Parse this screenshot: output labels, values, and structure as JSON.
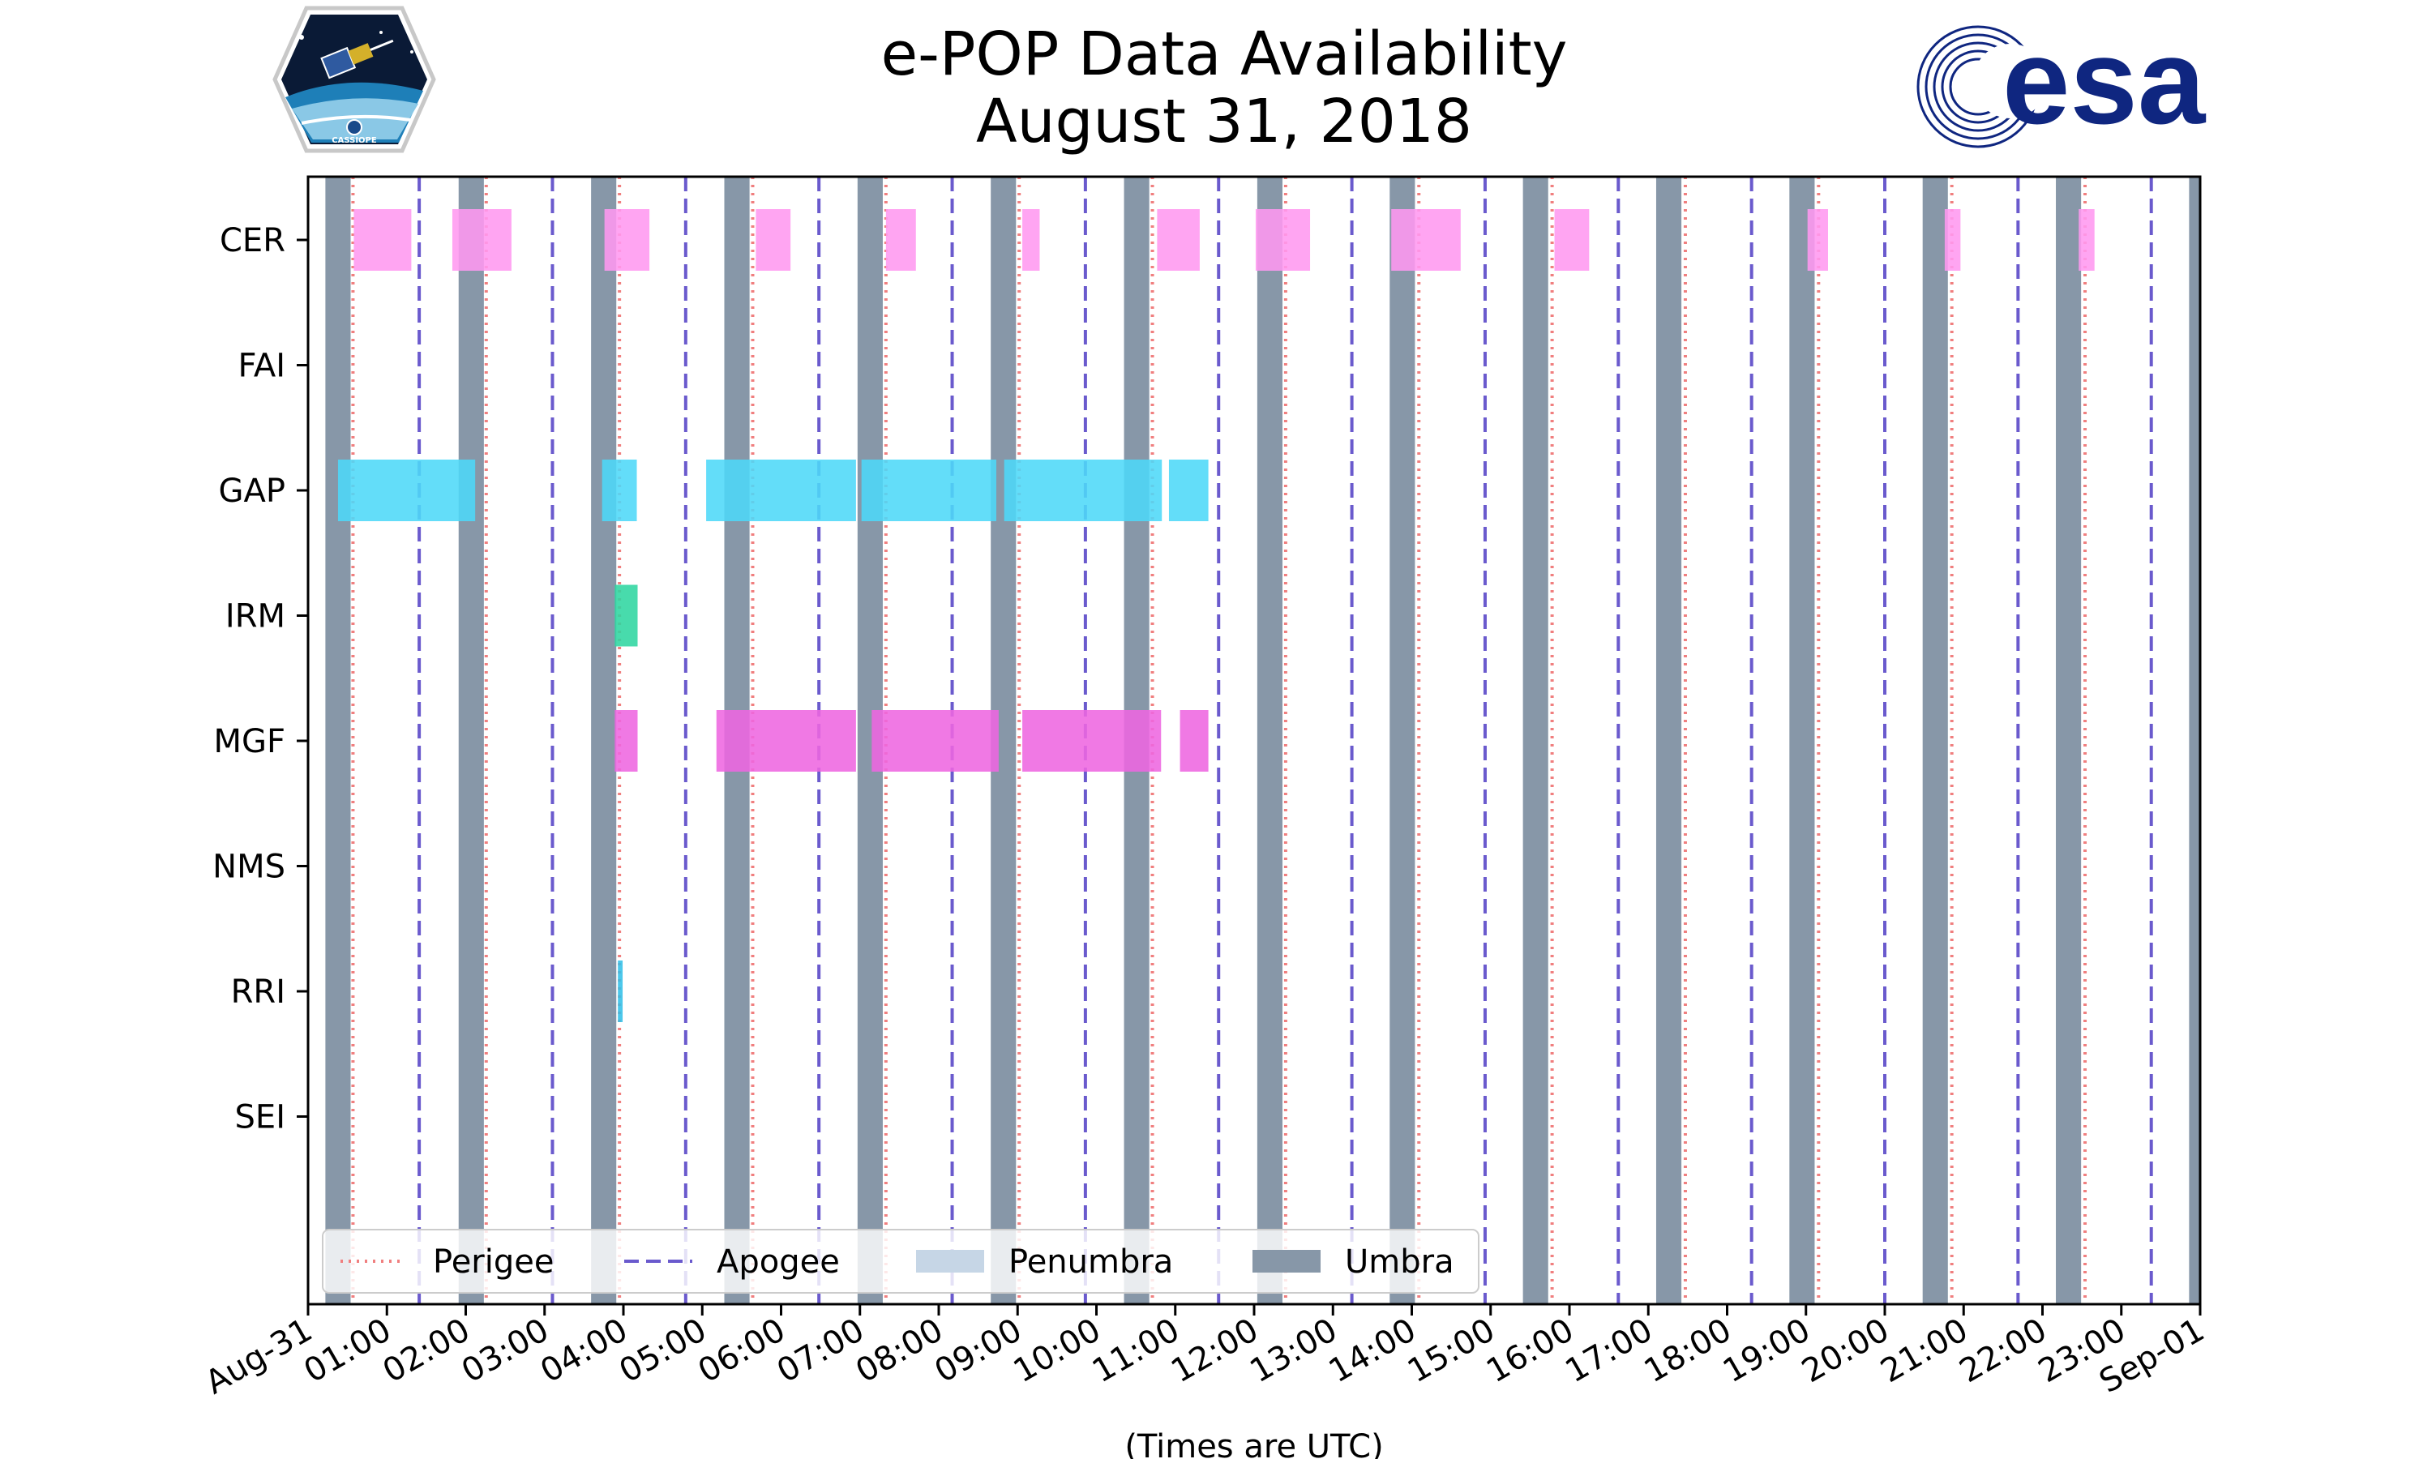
{
  "title_lines": [
    "e-POP Data Availability",
    "August 31, 2018"
  ],
  "logos": {
    "left": {
      "name": "cassiope-mission-logo",
      "text": "CASSIOPE"
    },
    "right": {
      "name": "esa-logo",
      "text": "esa",
      "color": "#0f2680"
    }
  },
  "chart_data": {
    "type": "timeline",
    "title": "e-POP Data Availability\nAugust 31, 2018",
    "xlabel": "(Times are UTC)",
    "ylabel": "",
    "x_unit": "hours UTC",
    "xlim": [
      0,
      24
    ],
    "x_ticks": [
      {
        "value": 0,
        "label": "Aug-31"
      },
      {
        "value": 1,
        "label": "01:00"
      },
      {
        "value": 2,
        "label": "02:00"
      },
      {
        "value": 3,
        "label": "03:00"
      },
      {
        "value": 4,
        "label": "04:00"
      },
      {
        "value": 5,
        "label": "05:00"
      },
      {
        "value": 6,
        "label": "06:00"
      },
      {
        "value": 7,
        "label": "07:00"
      },
      {
        "value": 8,
        "label": "08:00"
      },
      {
        "value": 9,
        "label": "09:00"
      },
      {
        "value": 10,
        "label": "10:00"
      },
      {
        "value": 11,
        "label": "11:00"
      },
      {
        "value": 12,
        "label": "12:00"
      },
      {
        "value": 13,
        "label": "13:00"
      },
      {
        "value": 14,
        "label": "14:00"
      },
      {
        "value": 15,
        "label": "15:00"
      },
      {
        "value": 16,
        "label": "16:00"
      },
      {
        "value": 17,
        "label": "17:00"
      },
      {
        "value": 18,
        "label": "18:00"
      },
      {
        "value": 19,
        "label": "19:00"
      },
      {
        "value": 20,
        "label": "20:00"
      },
      {
        "value": 21,
        "label": "21:00"
      },
      {
        "value": 22,
        "label": "22:00"
      },
      {
        "value": 23,
        "label": "23:00"
      },
      {
        "value": 24,
        "label": "Sep-01"
      }
    ],
    "instruments": [
      "CER",
      "FAI",
      "GAP",
      "IRM",
      "MGF",
      "NMS",
      "RRI",
      "SEI"
    ],
    "legend": {
      "placement": "lower-left",
      "entries": [
        {
          "label": "Perigee",
          "style": "dotted",
          "color": "#f07f7f"
        },
        {
          "label": "Apogee",
          "style": "dashed",
          "color": "#6a5acd"
        },
        {
          "label": "Penumbra",
          "style": "patch",
          "color": "#c6d6e6"
        },
        {
          "label": "Umbra",
          "style": "patch",
          "color": "#8797a8"
        }
      ]
    },
    "umbra": [
      [
        0.22,
        0.54
      ],
      [
        1.91,
        2.23
      ],
      [
        3.59,
        3.91
      ],
      [
        5.28,
        5.6
      ],
      [
        6.97,
        7.29
      ],
      [
        8.66,
        8.98
      ],
      [
        10.35,
        10.67
      ],
      [
        12.04,
        12.36
      ],
      [
        13.72,
        14.04
      ],
      [
        15.41,
        15.73
      ],
      [
        17.1,
        17.42
      ],
      [
        18.79,
        19.11
      ],
      [
        20.48,
        20.8
      ],
      [
        22.17,
        22.49
      ],
      [
        23.86,
        24.0
      ]
    ],
    "perigee": [
      0.57,
      2.26,
      3.95,
      5.64,
      7.33,
      9.02,
      10.71,
      12.4,
      14.09,
      15.78,
      17.47,
      19.16,
      20.85,
      22.54
    ],
    "apogee": [
      1.41,
      3.1,
      4.79,
      6.48,
      8.17,
      9.86,
      11.55,
      13.24,
      14.93,
      16.62,
      18.31,
      20.0,
      21.69,
      23.38
    ],
    "series": [
      {
        "instrument": "CER",
        "color": "#ff99f0",
        "intervals": [
          [
            0.58,
            1.31
          ],
          [
            1.83,
            2.58
          ],
          [
            3.76,
            4.33
          ],
          [
            5.68,
            6.12
          ],
          [
            7.33,
            7.71
          ],
          [
            9.06,
            9.28
          ],
          [
            10.77,
            11.31
          ],
          [
            12.02,
            12.71
          ],
          [
            13.74,
            14.62
          ],
          [
            15.81,
            16.25
          ],
          [
            19.02,
            19.28
          ],
          [
            20.76,
            20.96
          ],
          [
            22.46,
            22.66
          ]
        ]
      },
      {
        "instrument": "FAI",
        "color": "#a0a0f0",
        "intervals": []
      },
      {
        "instrument": "GAP",
        "color": "#4dd8f8",
        "intervals": [
          [
            0.38,
            2.12
          ],
          [
            3.73,
            4.17
          ],
          [
            5.05,
            6.95
          ],
          [
            7.02,
            8.73
          ],
          [
            8.83,
            10.83
          ],
          [
            10.92,
            11.42
          ]
        ]
      },
      {
        "instrument": "IRM",
        "color": "#2fd6a0",
        "intervals": [
          [
            3.89,
            4.18
          ]
        ]
      },
      {
        "instrument": "MGF",
        "color": "#ee66e0",
        "intervals": [
          [
            3.89,
            4.18
          ],
          [
            5.18,
            6.95
          ],
          [
            7.15,
            8.76
          ],
          [
            9.06,
            10.82
          ],
          [
            11.06,
            11.42
          ]
        ]
      },
      {
        "instrument": "NMS",
        "color": "#a0a0f0",
        "intervals": []
      },
      {
        "instrument": "RRI",
        "color": "#33c0e8",
        "intervals": [
          [
            3.93,
            3.99
          ]
        ]
      },
      {
        "instrument": "SEI",
        "color": "#a0a0f0",
        "intervals": []
      }
    ]
  }
}
